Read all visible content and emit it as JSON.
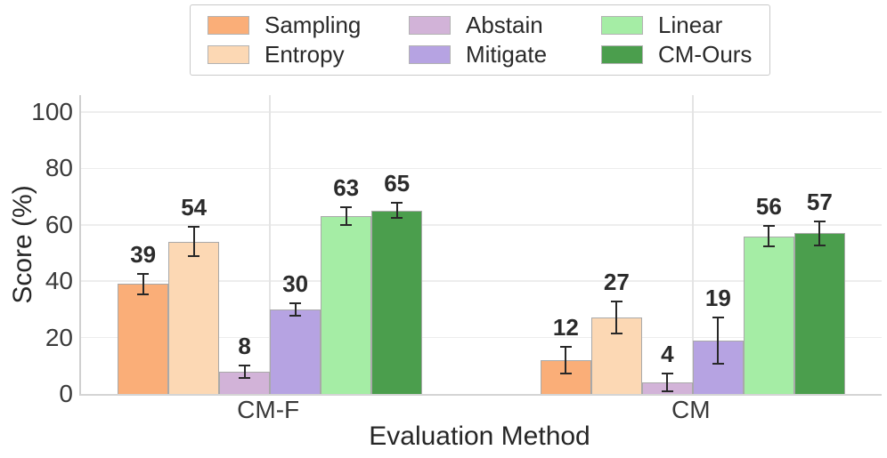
{
  "chart_data": {
    "type": "bar",
    "title": "",
    "xlabel": "Evaluation Method",
    "ylabel": "Score (%)",
    "categories": [
      "CM-F",
      "CM"
    ],
    "series": [
      {
        "name": "Sampling",
        "color": "#FAAE78",
        "values": [
          39,
          12
        ],
        "errors": [
          4,
          5
        ]
      },
      {
        "name": "Entropy",
        "color": "#FCD8B4",
        "values": [
          54,
          27
        ],
        "errors": [
          5.5,
          6
        ]
      },
      {
        "name": "Abstain",
        "color": "#D2B3D8",
        "values": [
          8,
          4
        ],
        "errors": [
          2.5,
          3.5
        ]
      },
      {
        "name": "Mitigate",
        "color": "#B6A3E2",
        "values": [
          30,
          19
        ],
        "errors": [
          2.5,
          8.5
        ]
      },
      {
        "name": "Linear",
        "color": "#A5EDA5",
        "values": [
          63,
          56
        ],
        "errors": [
          3.5,
          4
        ]
      },
      {
        "name": "CM-Ours",
        "color": "#4B9E4D",
        "values": [
          65,
          57
        ],
        "errors": [
          3,
          4.5
        ]
      }
    ],
    "bar_value_labels": {
      "CM-F": [
        39,
        54,
        8,
        30,
        63,
        65
      ],
      "CM": [
        12,
        27,
        4,
        19,
        56,
        57
      ]
    },
    "ylim": [
      0,
      106
    ],
    "yticks": [
      0,
      20,
      40,
      60,
      80,
      100
    ],
    "grid": true,
    "legend_position": "top",
    "legend_rows": [
      [
        "Sampling",
        "Abstain",
        "Linear"
      ],
      [
        "Entropy",
        "Mitigate",
        "CM-Ours"
      ]
    ],
    "bar_edge_color": "#a9a9a9",
    "error_bar_color": "#282828",
    "grid_color": "#ededed"
  }
}
